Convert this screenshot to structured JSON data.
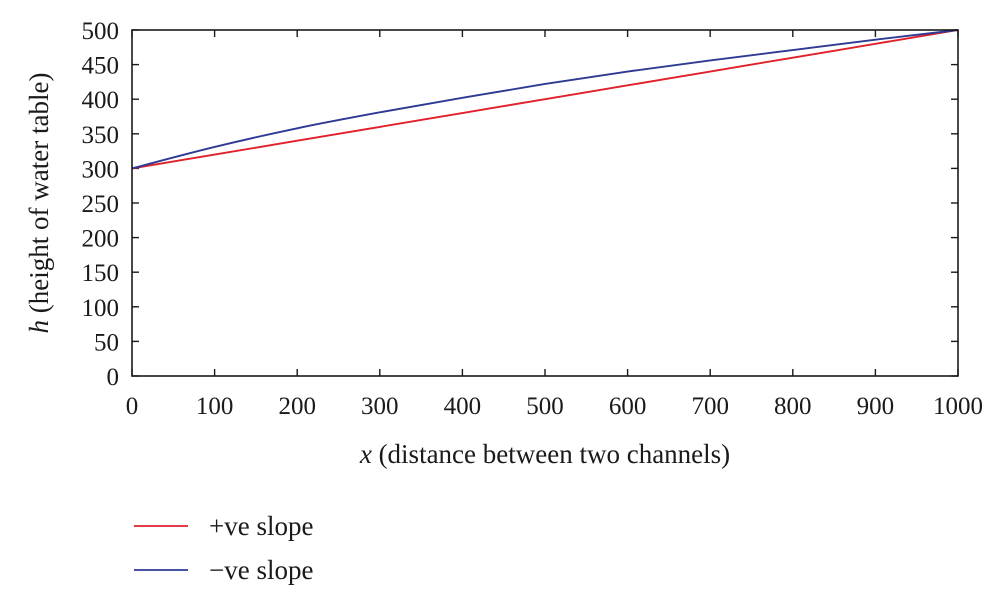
{
  "chart_data": {
    "type": "line",
    "title": "",
    "xlabel": {
      "var": "x",
      "text": " (distance between two channels)"
    },
    "ylabel": {
      "var": "h",
      "text": " (height of water table)"
    },
    "xlim": [
      0,
      1000
    ],
    "ylim": [
      0,
      500
    ],
    "xticks": [
      0,
      100,
      200,
      300,
      400,
      500,
      600,
      700,
      800,
      900,
      1000
    ],
    "yticks": [
      0,
      50,
      100,
      150,
      200,
      250,
      300,
      350,
      400,
      450,
      500
    ],
    "grid": false,
    "legend_position": "bottom-left",
    "series": [
      {
        "name": "+ve slope",
        "color": "#e0202a",
        "x": [
          0,
          100,
          200,
          300,
          400,
          500,
          600,
          700,
          800,
          900,
          1000
        ],
        "y": [
          300,
          320,
          340,
          360,
          380,
          400,
          420,
          440,
          460,
          480,
          500
        ]
      },
      {
        "name": "−ve slope",
        "color": "#2e3a94",
        "x": [
          0,
          100,
          200,
          300,
          400,
          500,
          600,
          700,
          800,
          900,
          1000
        ],
        "y": [
          300,
          331,
          358,
          381,
          402,
          422,
          440,
          456,
          471,
          486,
          500
        ]
      }
    ]
  }
}
